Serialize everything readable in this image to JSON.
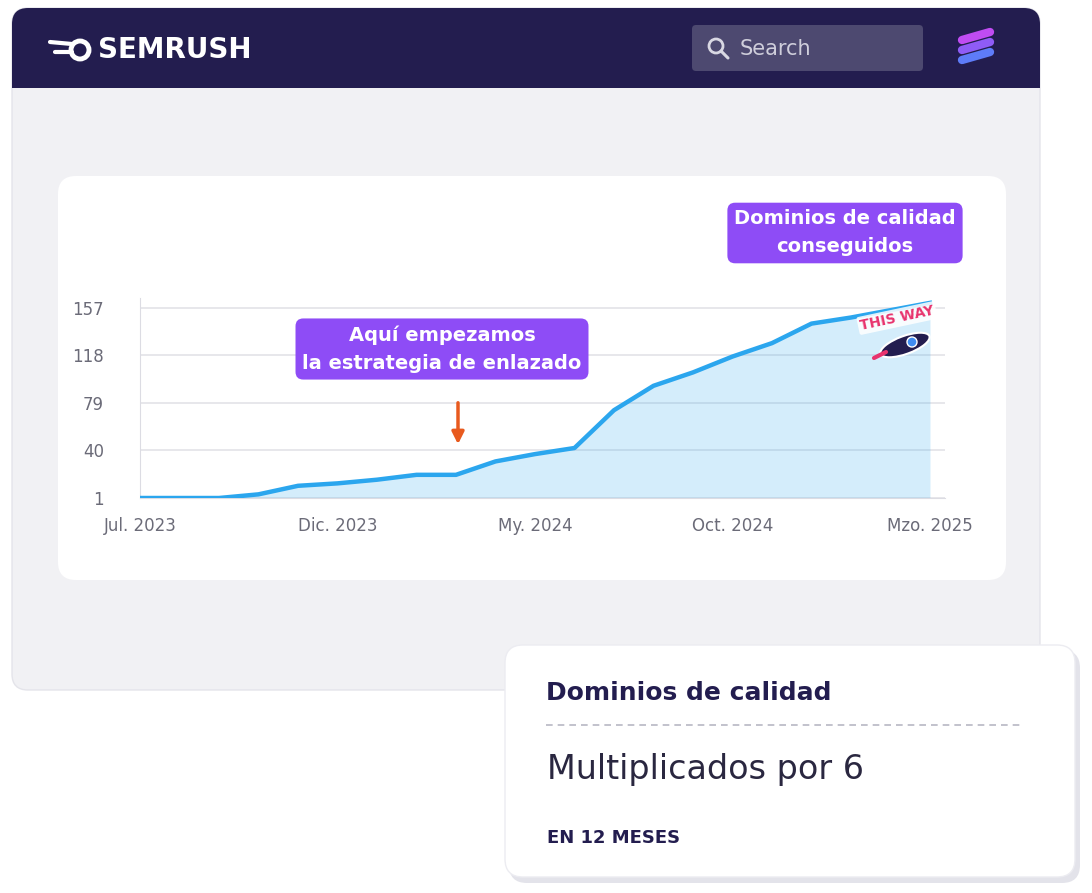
{
  "header": {
    "logo": "SEMRUSH",
    "search": "Search"
  },
  "chart_data": {
    "type": "area",
    "categories": [
      "Jul. 2023",
      null,
      null,
      null,
      null,
      "Dic. 2023",
      null,
      null,
      null,
      null,
      "My. 2024",
      null,
      null,
      null,
      null,
      "Oct. 2024",
      null,
      null,
      null,
      null,
      "Mzo. 2025"
    ],
    "values": [
      1,
      1,
      1,
      4,
      11,
      13,
      16,
      20,
      20,
      31,
      37,
      42,
      73,
      93,
      104,
      117,
      128,
      144,
      149,
      155,
      161
    ],
    "color": "#2ba6ee",
    "ylim": [
      1,
      165
    ],
    "yticks": [
      1,
      40,
      79,
      118,
      157
    ],
    "grid": true,
    "annotations": [
      "Aquí empezamos\nla estrategia de enlazado",
      "Dominios de calidad\nconseguidos",
      "THIS WAY"
    ]
  },
  "card": {
    "title": "Dominios de calidad",
    "value": "Multiplicados por 6",
    "note": "EN 12 MESES"
  }
}
